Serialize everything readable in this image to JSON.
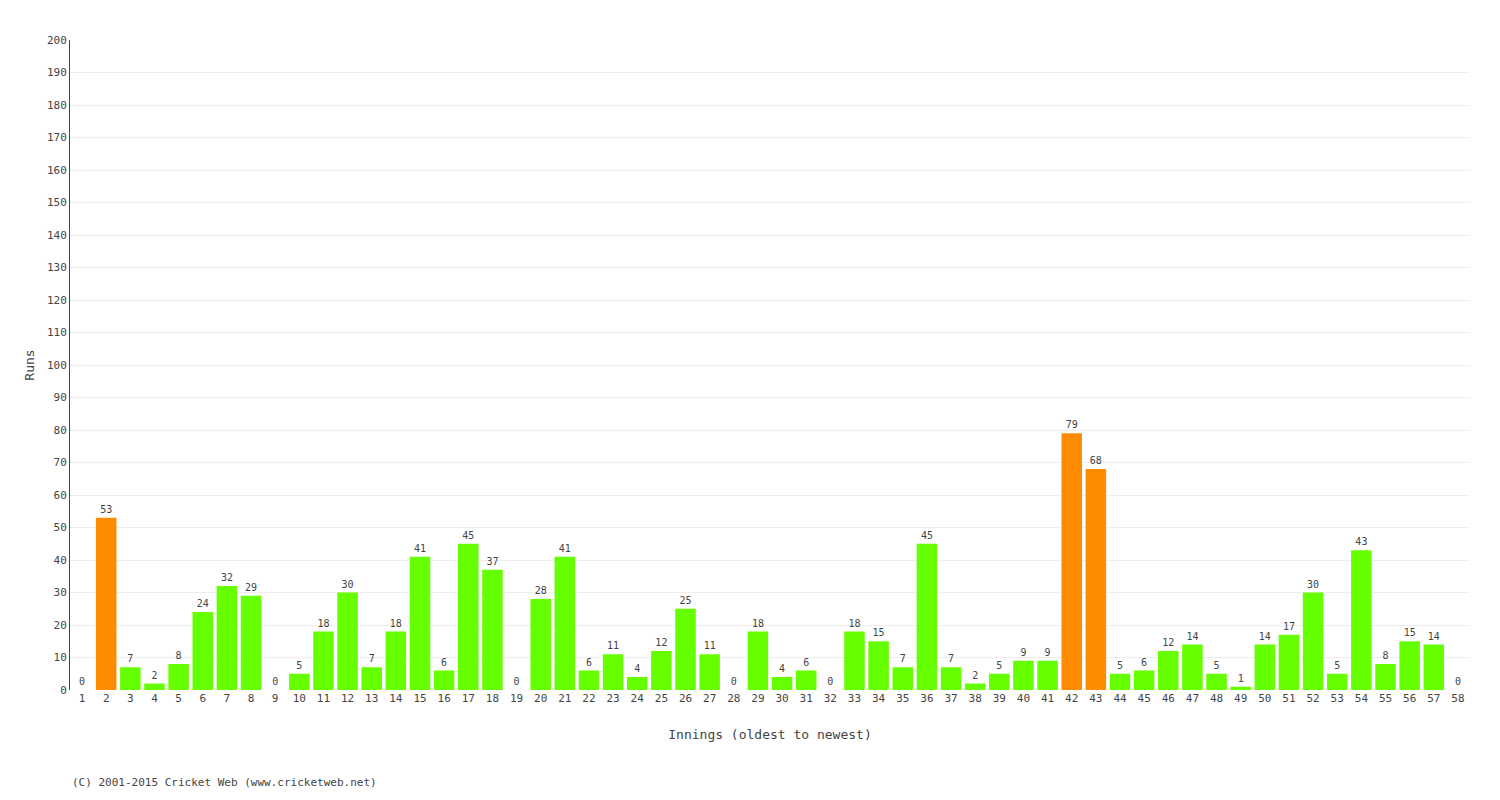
{
  "chart_data": {
    "type": "bar",
    "xlabel": "Innings (oldest to newest)",
    "ylabel": "Runs",
    "categories": [
      1,
      2,
      3,
      4,
      5,
      6,
      7,
      8,
      9,
      10,
      11,
      12,
      13,
      14,
      15,
      16,
      17,
      18,
      19,
      20,
      21,
      22,
      23,
      24,
      25,
      26,
      27,
      28,
      29,
      30,
      31,
      32,
      33,
      34,
      35,
      36,
      37,
      38,
      39,
      40,
      41,
      42,
      43,
      44,
      45,
      46,
      47,
      48,
      49,
      50,
      51,
      52,
      53,
      54,
      55,
      56,
      57,
      58
    ],
    "values": [
      0,
      53,
      7,
      2,
      8,
      24,
      32,
      29,
      0,
      5,
      18,
      30,
      7,
      18,
      41,
      6,
      45,
      37,
      0,
      28,
      41,
      6,
      11,
      4,
      12,
      25,
      11,
      0,
      18,
      4,
      6,
      0,
      18,
      15,
      7,
      45,
      7,
      2,
      5,
      9,
      9,
      79,
      68,
      5,
      6,
      12,
      14,
      5,
      1,
      14,
      17,
      30,
      5,
      43,
      8,
      15,
      14,
      0
    ],
    "colors": [
      "#66ff00",
      "#ff8c00",
      "#66ff00",
      "#66ff00",
      "#66ff00",
      "#66ff00",
      "#66ff00",
      "#66ff00",
      "#66ff00",
      "#66ff00",
      "#66ff00",
      "#66ff00",
      "#66ff00",
      "#66ff00",
      "#66ff00",
      "#66ff00",
      "#66ff00",
      "#66ff00",
      "#66ff00",
      "#66ff00",
      "#66ff00",
      "#66ff00",
      "#66ff00",
      "#66ff00",
      "#66ff00",
      "#66ff00",
      "#66ff00",
      "#66ff00",
      "#66ff00",
      "#66ff00",
      "#66ff00",
      "#66ff00",
      "#66ff00",
      "#66ff00",
      "#66ff00",
      "#66ff00",
      "#66ff00",
      "#66ff00",
      "#66ff00",
      "#66ff00",
      "#66ff00",
      "#ff8c00",
      "#ff8c00",
      "#66ff00",
      "#66ff00",
      "#66ff00",
      "#66ff00",
      "#66ff00",
      "#66ff00",
      "#66ff00",
      "#66ff00",
      "#66ff00",
      "#66ff00",
      "#66ff00",
      "#66ff00",
      "#66ff00",
      "#66ff00",
      "#66ff00"
    ],
    "ylim": [
      0,
      200
    ],
    "yticks": [
      0,
      10,
      20,
      30,
      40,
      50,
      60,
      70,
      80,
      90,
      100,
      110,
      120,
      130,
      140,
      150,
      160,
      170,
      180,
      190,
      200
    ],
    "grid": true,
    "data_labels": true,
    "annotations": [
      "(C) 2001-2015 Cricket Web (www.cricketweb.net)"
    ]
  }
}
